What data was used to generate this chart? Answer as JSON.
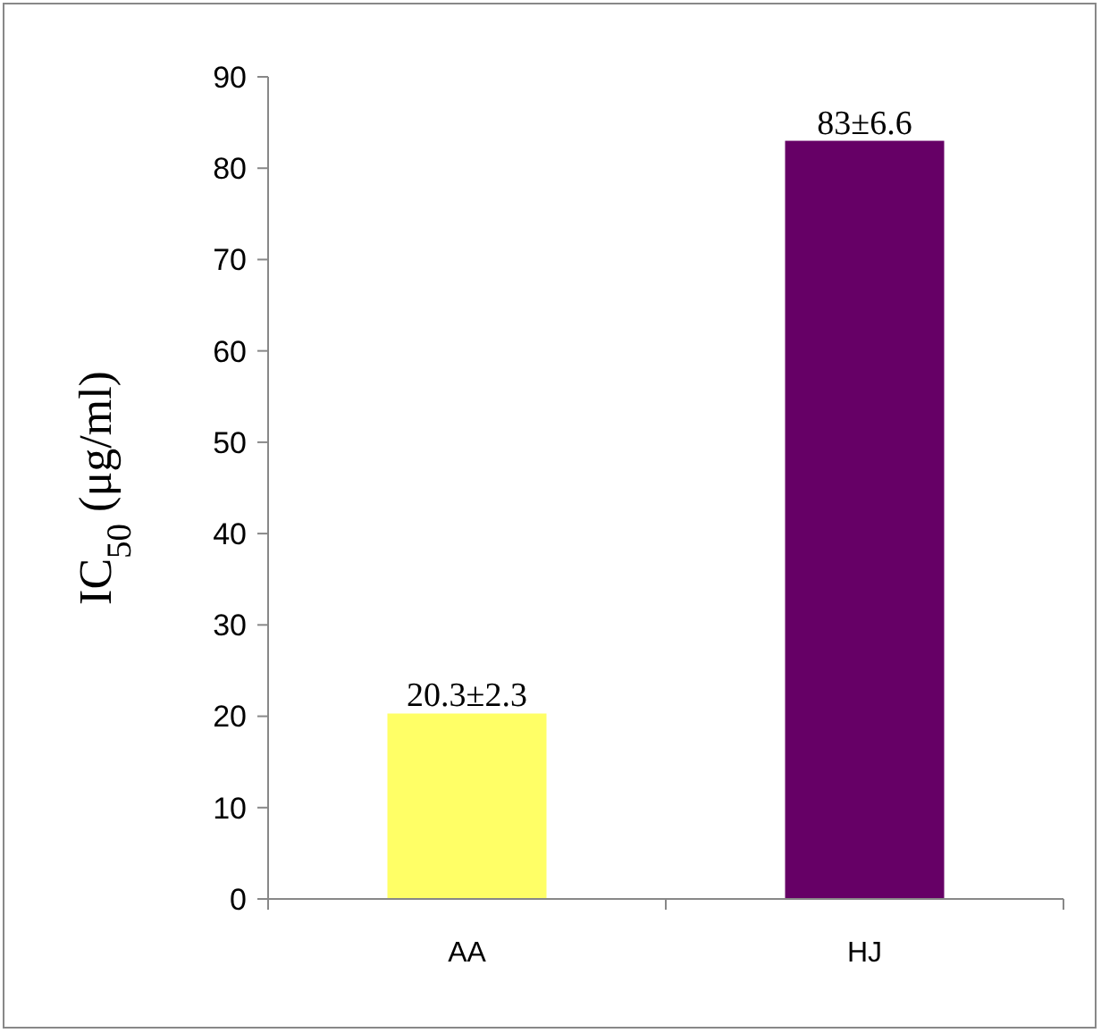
{
  "chart_data": {
    "type": "bar",
    "ylabel": "IC$_{50}$ (μg/ml)",
    "categories": [
      "AA",
      "HJ"
    ],
    "values": [
      20.3,
      83
    ],
    "colors": [
      "#ffff66",
      "#660066"
    ],
    "value_labels": [
      "20.3±2.3",
      "83±6.6"
    ],
    "ylim": [
      0,
      90
    ],
    "yticks": [
      0,
      10,
      20,
      30,
      40,
      50,
      60,
      70,
      80,
      90
    ],
    "grid": false
  }
}
